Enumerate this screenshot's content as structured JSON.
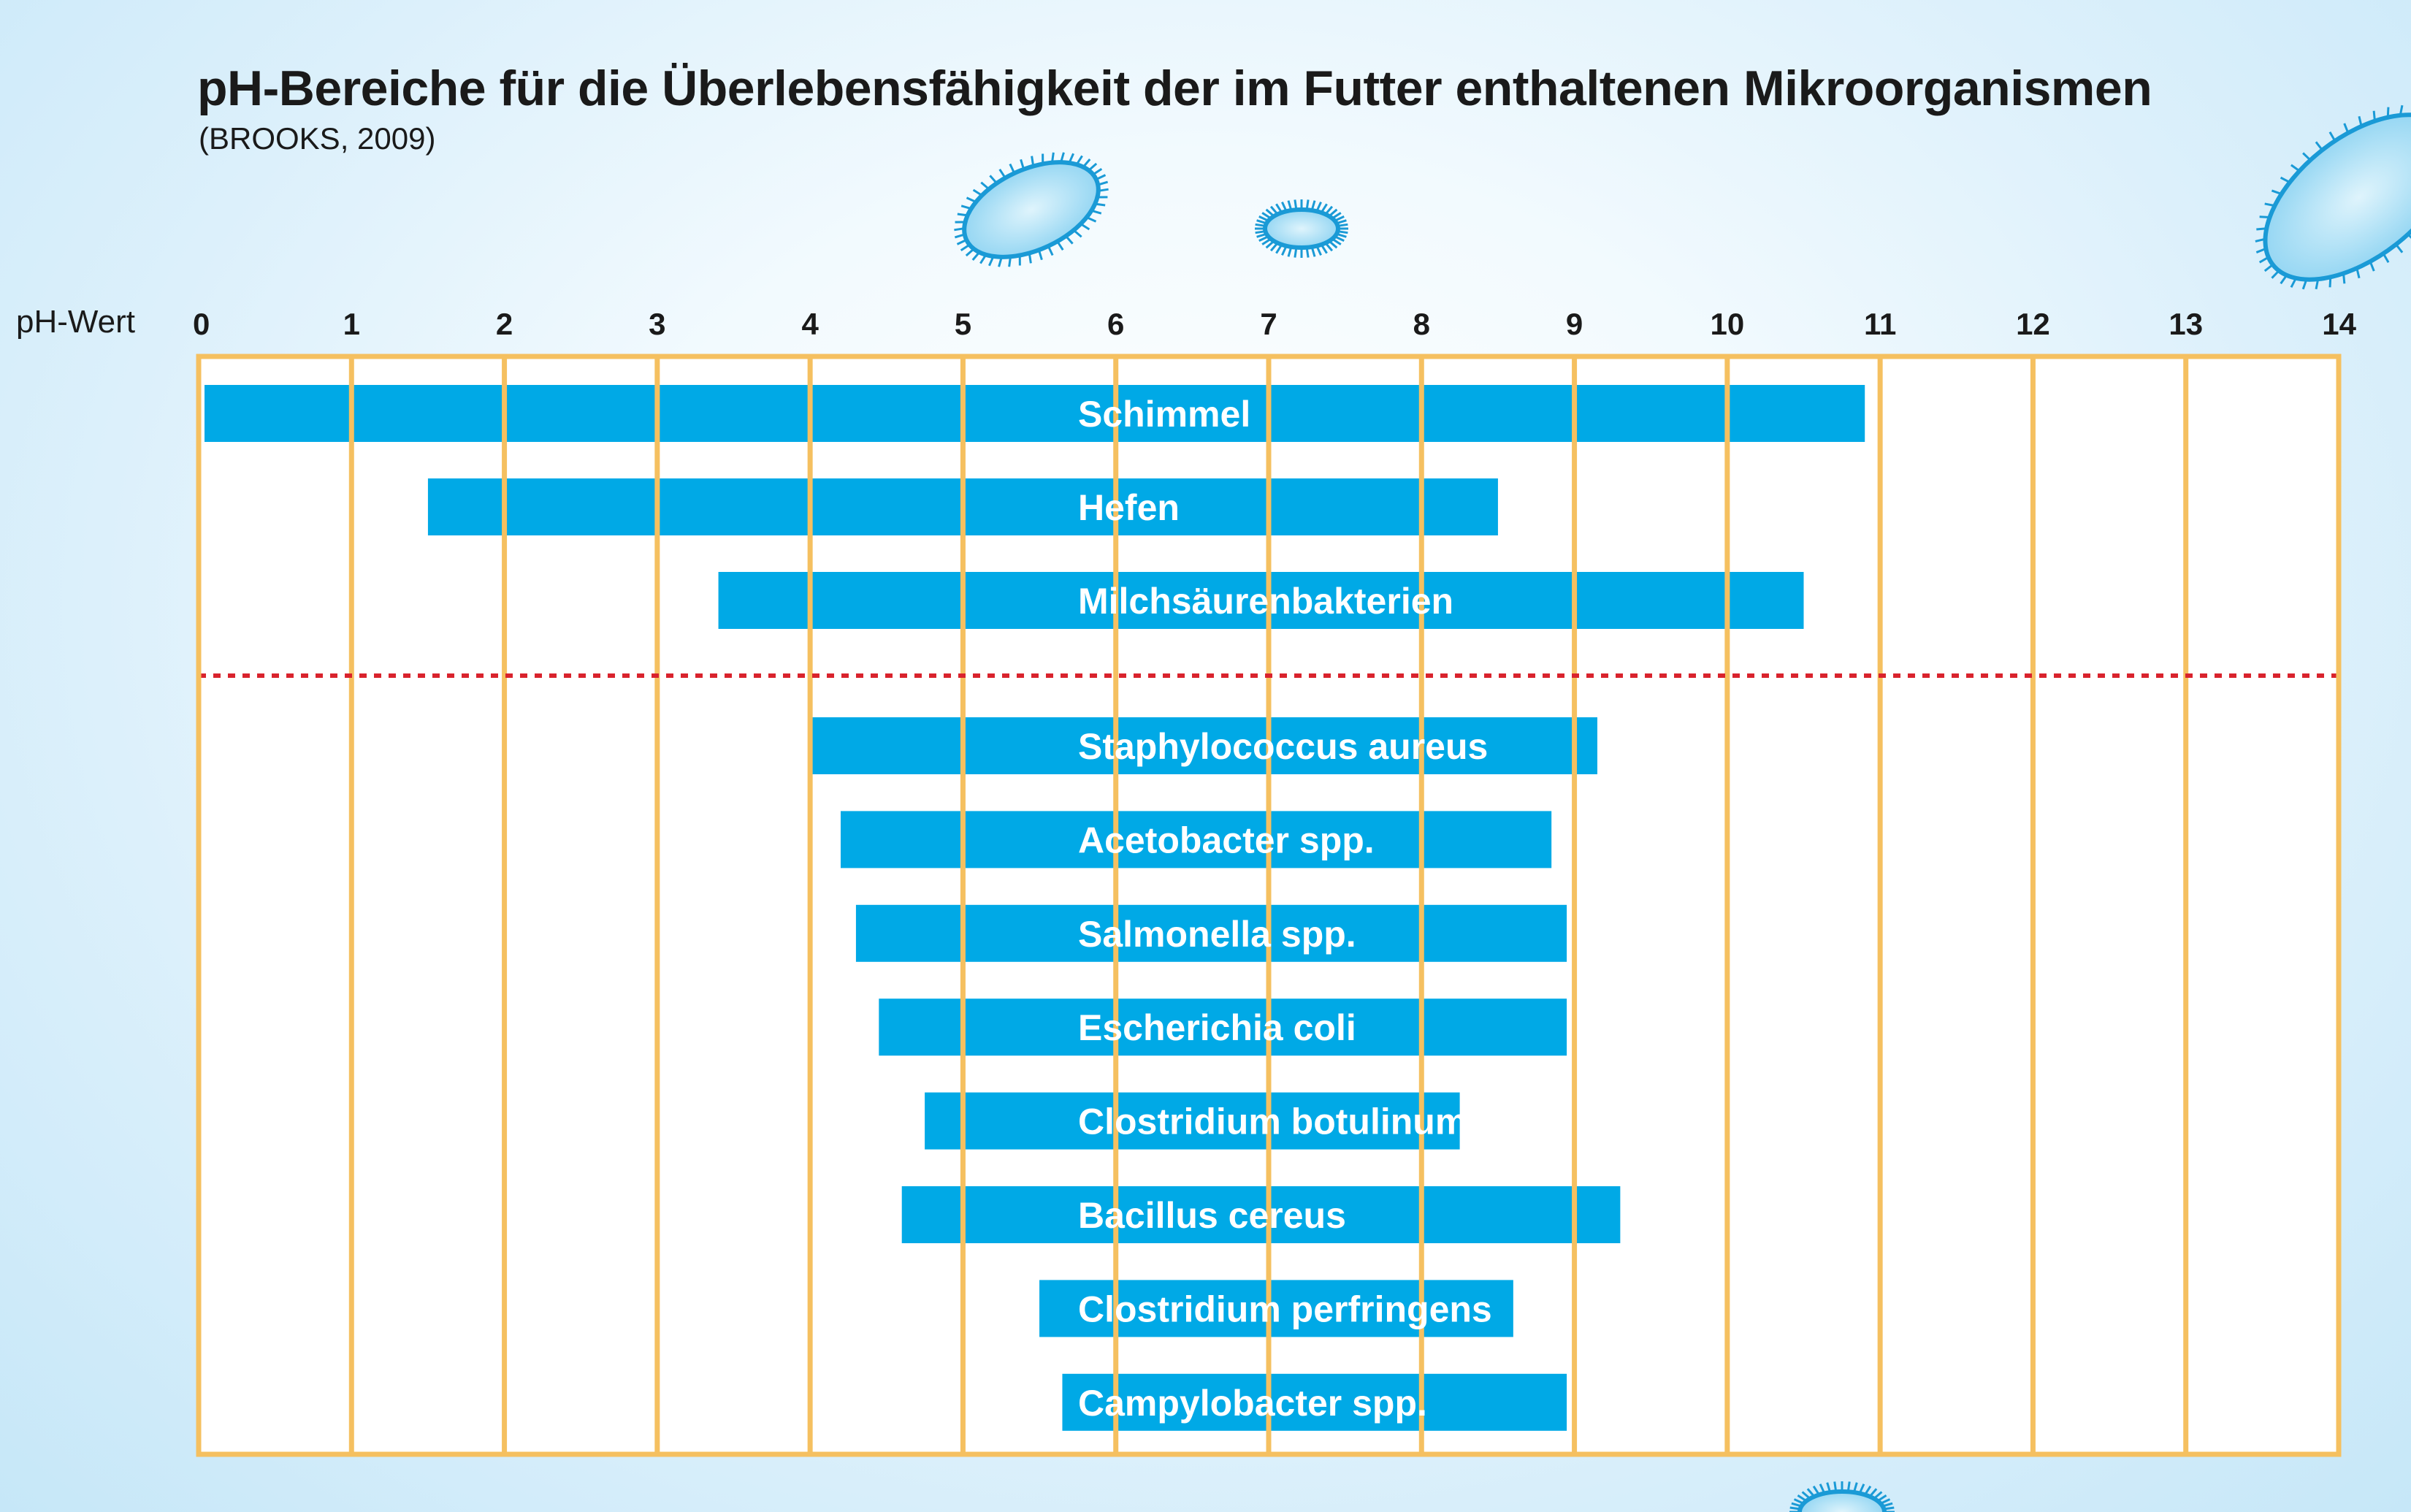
{
  "header": {
    "title": "pH-Bereiche für die Überlebensfähigkeit der im Futter enthaltenen Mikroorganismen",
    "subtitle": "(BROOKS, 2009)"
  },
  "colors": {
    "bar": "#00a9e6",
    "frame": "#f5c060",
    "separator": "#d9232d",
    "microbe_fill": "#8fd4f2",
    "microbe_cilia": "#1a9ad6"
  },
  "chart_data": {
    "type": "bar",
    "orientation": "horizontal-range",
    "xlabel": "pH-Wert",
    "xlim": [
      0,
      14
    ],
    "xticks": [
      0,
      1,
      2,
      3,
      4,
      5,
      6,
      7,
      8,
      9,
      10,
      11,
      12,
      13,
      14
    ],
    "grid": true,
    "separator_after_index": 2,
    "series": [
      {
        "name": "Schimmel",
        "min": 0.0,
        "max": 10.9
      },
      {
        "name": "Hefen",
        "min": 1.5,
        "max": 8.5
      },
      {
        "name": "Milchsäurenbakterien",
        "min": 3.4,
        "max": 10.5
      },
      {
        "name": "Staphylococcus aureus",
        "min": 4.0,
        "max": 9.15
      },
      {
        "name": "Acetobacter spp.",
        "min": 4.2,
        "max": 8.85
      },
      {
        "name": "Salmonella spp.",
        "min": 4.3,
        "max": 8.95
      },
      {
        "name": "Escherichia coli",
        "min": 4.45,
        "max": 8.95
      },
      {
        "name": "Clostridium botulinum",
        "min": 4.75,
        "max": 8.25
      },
      {
        "name": "Bacillus cereus",
        "min": 4.6,
        "max": 9.3
      },
      {
        "name": "Clostridium perfringens",
        "min": 5.5,
        "max": 8.6
      },
      {
        "name": "Campylobacter spp.",
        "min": 5.65,
        "max": 8.95
      }
    ]
  }
}
